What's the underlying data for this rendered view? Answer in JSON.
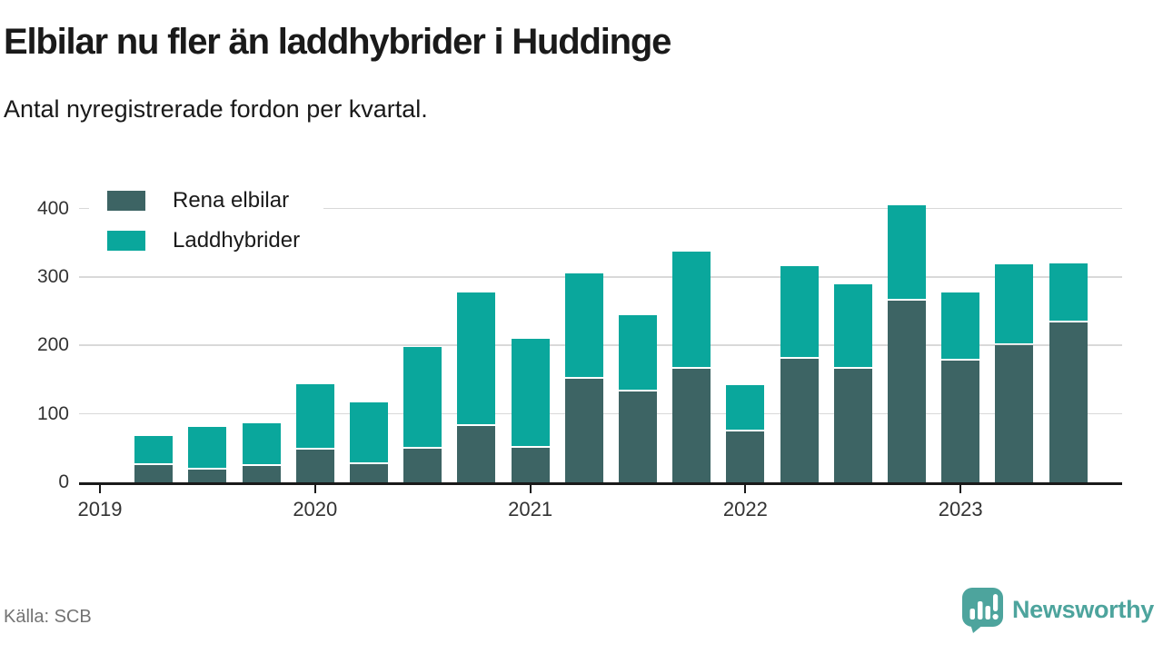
{
  "header": {
    "title": "Elbilar nu fler än laddhybrider i Huddinge",
    "subtitle": "Antal nyregistrerade fordon per kvartal."
  },
  "footer": {
    "source": "Källa: SCB",
    "brand": "Newsworthy"
  },
  "colors": {
    "rena_elbilar": "#3d6464",
    "laddhybrider": "#0aa79c",
    "brand": "#4da49d",
    "grid": "#d9d9d9",
    "axis": "#1a1a1a",
    "muted": "#737373"
  },
  "chart_data": {
    "type": "bar",
    "stacked": true,
    "title": "Elbilar nu fler än laddhybrider i Huddinge",
    "subtitle": "Antal nyregistrerade fordon per kvartal.",
    "categories": [
      "2019 kv2",
      "2019 kv3",
      "2019 kv4",
      "2020 kv1",
      "2020 kv2",
      "2020 kv3",
      "2020 kv4",
      "2021 kv1",
      "2021 kv2",
      "2021 kv3",
      "2021 kv4",
      "2022 kv1",
      "2022 kv2",
      "2022 kv3",
      "2022 kv4",
      "2023 kv1",
      "2023 kv2",
      "2023 kv3"
    ],
    "series": [
      {
        "name": "Rena elbilar",
        "color_key": "rena_elbilar",
        "values": [
          25,
          19,
          24,
          48,
          26,
          49,
          82,
          51,
          151,
          133,
          166,
          74,
          180,
          166,
          265,
          178,
          201,
          234
        ]
      },
      {
        "name": "Laddhybrider",
        "color_key": "laddhybrider",
        "values": [
          43,
          62,
          63,
          95,
          90,
          149,
          195,
          160,
          154,
          111,
          171,
          68,
          135,
          124,
          140,
          100,
          118,
          86
        ]
      }
    ],
    "totals": [
      68,
      81,
      87,
      143,
      116,
      198,
      277,
      211,
      305,
      244,
      337,
      142,
      315,
      290,
      405,
      278,
      319,
      320
    ],
    "year_ticks": [
      "2019",
      "2020",
      "2021",
      "2022",
      "2023"
    ],
    "y_ticks": [
      0,
      100,
      200,
      300,
      400
    ],
    "ylim": [
      0,
      420
    ],
    "grid": "horizontal",
    "legend_position": "top-left"
  }
}
